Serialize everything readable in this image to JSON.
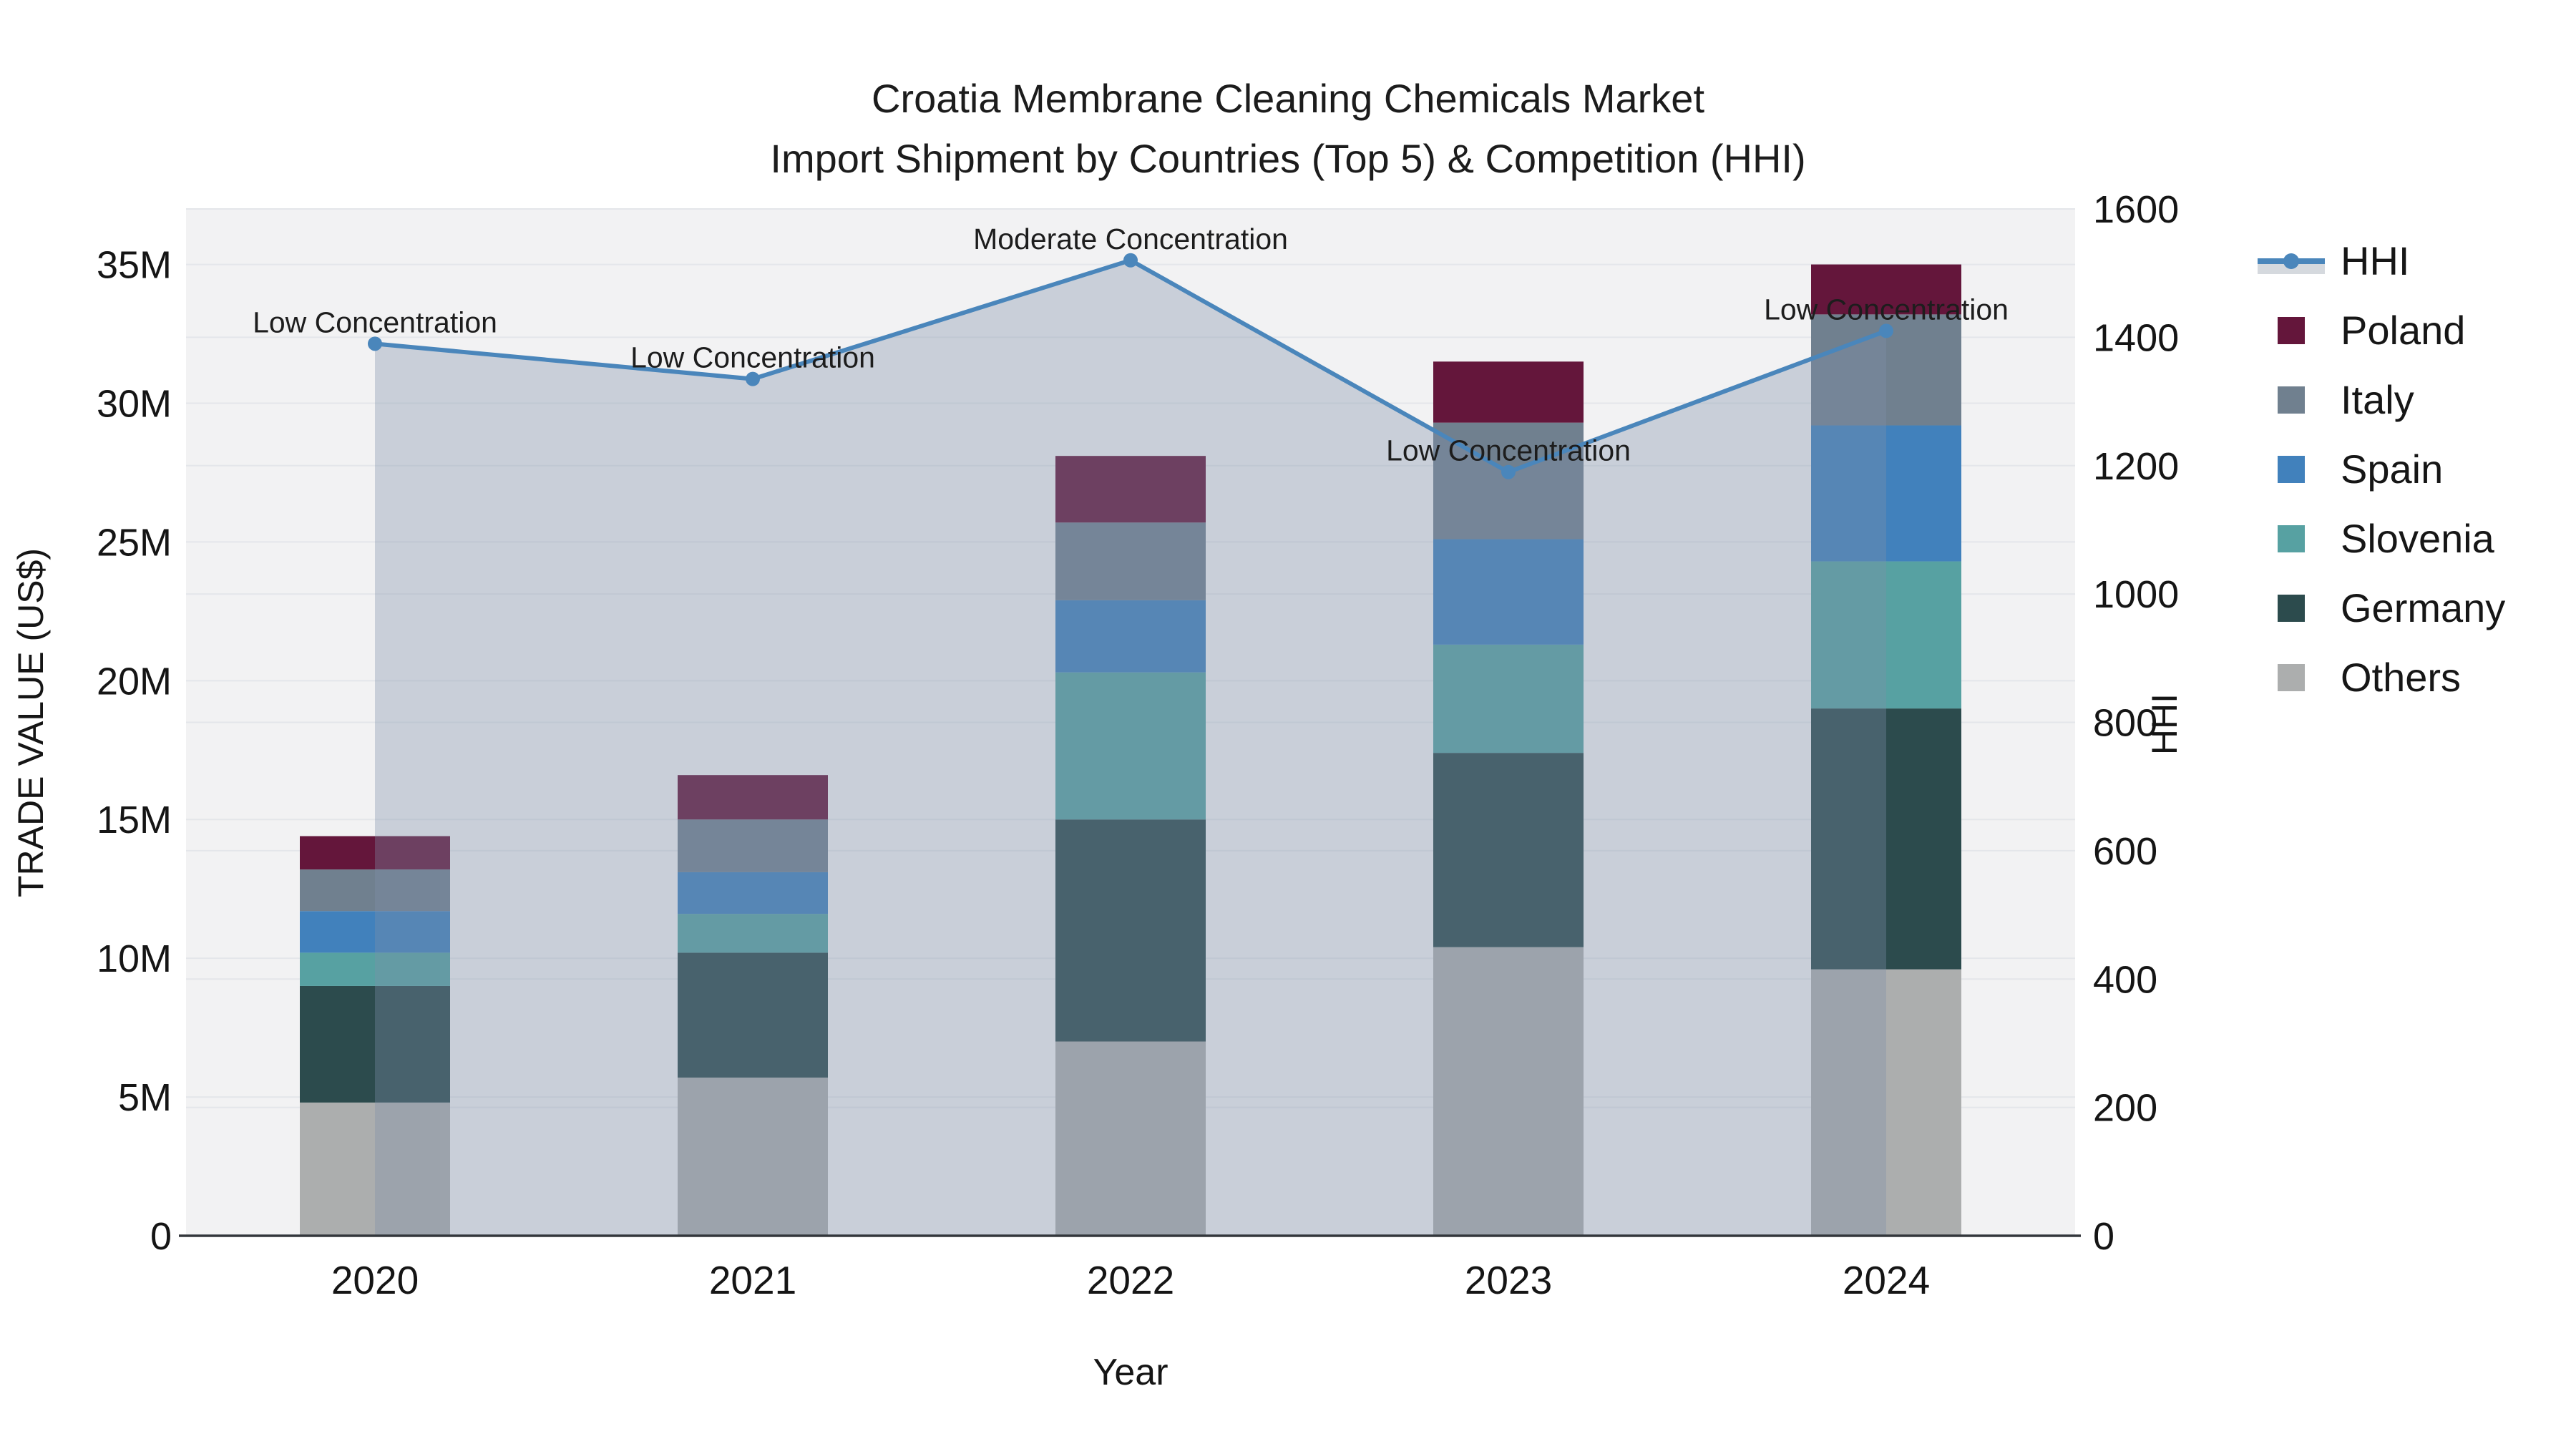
{
  "title": {
    "line1": "Croatia Membrane Cleaning Chemicals Market",
    "line2": "Import Shipment by Countries (Top 5) & Competition (HHI)"
  },
  "chart_data": {
    "type": "bar+line dual-axis (stacked bars, HHI line with area fill)",
    "categories": [
      "2020",
      "2021",
      "2022",
      "2023",
      "2024"
    ],
    "bar_series": [
      {
        "name": "Others",
        "color": "#ACAEAE",
        "values": [
          4.8,
          5.7,
          7.0,
          10.4,
          9.6
        ]
      },
      {
        "name": "Germany",
        "color": "#2C4B4D",
        "values": [
          4.2,
          4.5,
          8.0,
          7.0,
          9.4
        ]
      },
      {
        "name": "Slovenia",
        "color": "#57A1A2",
        "values": [
          1.2,
          1.4,
          5.3,
          3.9,
          5.3
        ]
      },
      {
        "name": "Spain",
        "color": "#4181BC",
        "values": [
          1.5,
          1.5,
          2.6,
          3.8,
          4.9
        ]
      },
      {
        "name": "Italy",
        "color": "#70808F",
        "values": [
          1.5,
          1.9,
          2.8,
          4.2,
          4.0
        ]
      },
      {
        "name": "Poland",
        "color": "#64163B",
        "values": [
          1.2,
          1.6,
          2.4,
          2.2,
          1.8
        ]
      }
    ],
    "bar_totals": [
      14.4,
      16.6,
      28.1,
      31.5,
      35.0
    ],
    "line_series": {
      "name": "HHI",
      "values": [
        1390,
        1335,
        1520,
        1190,
        1410
      ],
      "color": "#4A86BB",
      "area_fill": "rgba(125,142,170,0.35)"
    },
    "annotations": [
      "Low Concentration",
      "Low Concentration",
      "Moderate Concentration",
      "Low Concentration",
      "Low Concentration"
    ],
    "x": {
      "title": "Year"
    },
    "y_left": {
      "title": "TRADE VALUE (US$)",
      "unit": "USD millions",
      "tick_labels": [
        "0",
        "5M",
        "10M",
        "15M",
        "20M",
        "25M",
        "30M",
        "35M"
      ],
      "tick_values": [
        0,
        5,
        10,
        15,
        20,
        25,
        30,
        35
      ],
      "range_max": 37
    },
    "y_right": {
      "title": "HHI",
      "tick_labels": [
        "0",
        "200",
        "400",
        "600",
        "800",
        "1000",
        "1200",
        "1400",
        "1600"
      ],
      "tick_values": [
        0,
        200,
        400,
        600,
        800,
        1000,
        1200,
        1400,
        1600
      ],
      "range_max": 1600
    },
    "grid": "both axes, horizontal lines",
    "legend_position": "right"
  },
  "legend": {
    "items": [
      {
        "label": "HHI",
        "type": "line",
        "color": "#4A86BB"
      },
      {
        "label": "Poland",
        "type": "square",
        "color": "#64163B"
      },
      {
        "label": "Italy",
        "type": "square",
        "color": "#70808F"
      },
      {
        "label": "Spain",
        "type": "square",
        "color": "#4181BC"
      },
      {
        "label": "Slovenia",
        "type": "square",
        "color": "#57A1A2"
      },
      {
        "label": "Germany",
        "type": "square",
        "color": "#2C4B4D"
      },
      {
        "label": "Others",
        "type": "square",
        "color": "#ACAEAE"
      }
    ]
  },
  "colors": {
    "plot_bg": "#F2F2F3",
    "grid_line": "#E4E6EA",
    "axis_line": "#33373C",
    "text": "#151515"
  }
}
